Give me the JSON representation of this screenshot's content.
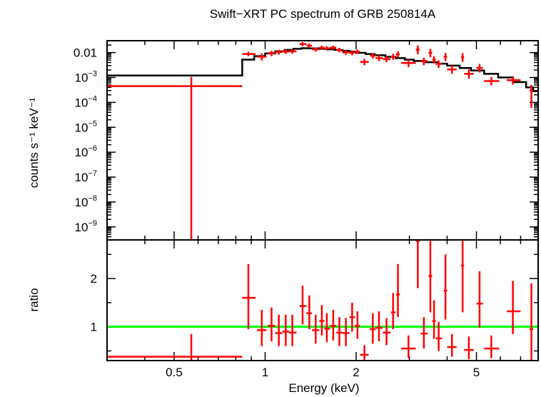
{
  "chart_data": [
    {
      "type": "scatter",
      "title": "Swift−XRT PC spectrum of GRB 250814A",
      "ylabel": "counts s⁻¹ keV⁻¹",
      "xscale": "log",
      "yscale": "log",
      "xlim": [
        0.3,
        8.0
      ],
      "ylim": [
        3e-10,
        0.03
      ],
      "yticks": [
        {
          "value": 0.01,
          "label": "0.01"
        },
        {
          "value": 0.001,
          "base": "10",
          "exp": "−3"
        },
        {
          "value": 0.0001,
          "base": "10",
          "exp": "−4"
        },
        {
          "value": 1e-05,
          "base": "10",
          "exp": "−5"
        },
        {
          "value": 1e-06,
          "base": "10",
          "exp": "−6"
        },
        {
          "value": 1e-07,
          "base": "10",
          "exp": "−7"
        },
        {
          "value": 1e-08,
          "base": "10",
          "exp": "−8"
        },
        {
          "value": 1e-09,
          "base": "10",
          "exp": "−9"
        }
      ],
      "series": [
        {
          "kind": "data",
          "color": "#ff0000",
          "points": [
            {
              "x": 0.57,
              "xlo": 0.3,
              "xhi": 0.84,
              "y": 0.00045,
              "ylo": 3e-10,
              "yhi": 0.00105
            },
            {
              "x": 0.88,
              "xlo": 0.84,
              "xhi": 0.93,
              "y": 0.0088,
              "ylo": 0.0072,
              "yhi": 0.0108
            },
            {
              "x": 0.975,
              "xlo": 0.94,
              "xhi": 1.01,
              "y": 0.0068,
              "ylo": 0.0048,
              "yhi": 0.0092
            },
            {
              "x": 1.05,
              "xlo": 1.02,
              "xhi": 1.08,
              "y": 0.0095,
              "ylo": 0.0072,
              "yhi": 0.0118
            },
            {
              "x": 1.11,
              "xlo": 1.08,
              "xhi": 1.14,
              "y": 0.0105,
              "ylo": 0.0082,
              "yhi": 0.013
            },
            {
              "x": 1.17,
              "xlo": 1.14,
              "xhi": 1.2,
              "y": 0.011,
              "ylo": 0.0088,
              "yhi": 0.0135
            },
            {
              "x": 1.23,
              "xlo": 1.2,
              "xhi": 1.27,
              "y": 0.0112,
              "ylo": 0.009,
              "yhi": 0.0138
            },
            {
              "x": 1.33,
              "xlo": 1.3,
              "xhi": 1.37,
              "y": 0.022,
              "ylo": 0.018,
              "yhi": 0.026
            },
            {
              "x": 1.4,
              "xlo": 1.37,
              "xhi": 1.43,
              "y": 0.019,
              "ylo": 0.0155,
              "yhi": 0.023
            },
            {
              "x": 1.47,
              "xlo": 1.43,
              "xhi": 1.51,
              "y": 0.0135,
              "ylo": 0.011,
              "yhi": 0.016
            },
            {
              "x": 1.54,
              "xlo": 1.51,
              "xhi": 1.57,
              "y": 0.0158,
              "ylo": 0.013,
              "yhi": 0.019
            },
            {
              "x": 1.6,
              "xlo": 1.57,
              "xhi": 1.64,
              "y": 0.0148,
              "ylo": 0.012,
              "yhi": 0.018
            },
            {
              "x": 1.68,
              "xlo": 1.64,
              "xhi": 1.72,
              "y": 0.0158,
              "ylo": 0.013,
              "yhi": 0.019
            },
            {
              "x": 1.76,
              "xlo": 1.72,
              "xhi": 1.8,
              "y": 0.0128,
              "ylo": 0.0102,
              "yhi": 0.0155
            },
            {
              "x": 1.85,
              "xlo": 1.8,
              "xhi": 1.9,
              "y": 0.0102,
              "ylo": 0.0082,
              "yhi": 0.0125
            },
            {
              "x": 1.94,
              "xlo": 1.9,
              "xhi": 1.98,
              "y": 0.0098,
              "ylo": 0.0078,
              "yhi": 0.012
            },
            {
              "x": 2.02,
              "xlo": 1.98,
              "xhi": 2.06,
              "y": 0.0108,
              "ylo": 0.0088,
              "yhi": 0.0132
            },
            {
              "x": 2.13,
              "xlo": 2.06,
              "xhi": 2.2,
              "y": 0.0042,
              "ylo": 0.0031,
              "yhi": 0.0056
            },
            {
              "x": 2.27,
              "xlo": 2.22,
              "xhi": 2.32,
              "y": 0.0075,
              "ylo": 0.0058,
              "yhi": 0.0095
            },
            {
              "x": 2.38,
              "xlo": 2.32,
              "xhi": 2.45,
              "y": 0.006,
              "ylo": 0.0045,
              "yhi": 0.0078
            },
            {
              "x": 2.52,
              "xlo": 2.45,
              "xhi": 2.6,
              "y": 0.0055,
              "ylo": 0.0041,
              "yhi": 0.0072
            },
            {
              "x": 2.65,
              "xlo": 2.61,
              "xhi": 2.7,
              "y": 0.0068,
              "ylo": 0.0051,
              "yhi": 0.0089
            },
            {
              "x": 2.75,
              "xlo": 2.71,
              "xhi": 2.79,
              "y": 0.0085,
              "ylo": 0.0062,
              "yhi": 0.0112
            },
            {
              "x": 2.98,
              "xlo": 2.82,
              "xhi": 3.15,
              "y": 0.0038,
              "ylo": 0.0026,
              "yhi": 0.0054
            },
            {
              "x": 3.2,
              "xlo": 3.15,
              "xhi": 3.25,
              "y": 0.0132,
              "ylo": 0.0085,
              "yhi": 0.0195
            },
            {
              "x": 3.35,
              "xlo": 3.27,
              "xhi": 3.45,
              "y": 0.0045,
              "ylo": 0.0031,
              "yhi": 0.0063
            },
            {
              "x": 3.52,
              "xlo": 3.47,
              "xhi": 3.57,
              "y": 0.0098,
              "ylo": 0.0065,
              "yhi": 0.0142
            },
            {
              "x": 3.62,
              "xlo": 3.57,
              "xhi": 3.67,
              "y": 0.0052,
              "ylo": 0.0036,
              "yhi": 0.0072
            },
            {
              "x": 3.75,
              "xlo": 3.67,
              "xhi": 3.85,
              "y": 0.0035,
              "ylo": 0.0024,
              "yhi": 0.0049
            },
            {
              "x": 3.95,
              "xlo": 3.9,
              "xhi": 4.0,
              "y": 0.0068,
              "ylo": 0.0045,
              "yhi": 0.0098
            },
            {
              "x": 4.15,
              "xlo": 4.0,
              "xhi": 4.3,
              "y": 0.0021,
              "ylo": 0.0014,
              "yhi": 0.003
            },
            {
              "x": 4.5,
              "xlo": 4.45,
              "xhi": 4.55,
              "y": 0.0065,
              "ylo": 0.0042,
              "yhi": 0.0095
            },
            {
              "x": 4.72,
              "xlo": 4.55,
              "xhi": 4.9,
              "y": 0.0014,
              "ylo": 0.0009,
              "yhi": 0.0021
            },
            {
              "x": 5.12,
              "xlo": 5.0,
              "xhi": 5.25,
              "y": 0.0024,
              "ylo": 0.0016,
              "yhi": 0.0035
            },
            {
              "x": 5.6,
              "xlo": 5.3,
              "xhi": 5.95,
              "y": 0.00072,
              "ylo": 0.00048,
              "yhi": 0.00105
            },
            {
              "x": 6.6,
              "xlo": 6.3,
              "xhi": 7.0,
              "y": 0.00078,
              "ylo": 0.00052,
              "yhi": 0.00112
            },
            {
              "x": 7.6,
              "xlo": 7.5,
              "xhi": 7.7,
              "y": 0.0003,
              "ylo": 6e-05,
              "yhi": 0.0005
            }
          ]
        },
        {
          "kind": "model",
          "color": "#000000",
          "steps": [
            {
              "xlo": 0.3,
              "xhi": 0.84,
              "y": 0.0012
            },
            {
              "xlo": 0.84,
              "xhi": 0.92,
              "y": 0.0052
            },
            {
              "xlo": 0.92,
              "xhi": 1.0,
              "y": 0.0072
            },
            {
              "xlo": 1.0,
              "xhi": 1.08,
              "y": 0.0092
            },
            {
              "xlo": 1.08,
              "xhi": 1.16,
              "y": 0.0112
            },
            {
              "xlo": 1.16,
              "xhi": 1.24,
              "y": 0.0128
            },
            {
              "xlo": 1.24,
              "xhi": 1.32,
              "y": 0.0142
            },
            {
              "xlo": 1.32,
              "xhi": 1.4,
              "y": 0.015
            },
            {
              "xlo": 1.4,
              "xhi": 1.5,
              "y": 0.0148
            },
            {
              "xlo": 1.5,
              "xhi": 1.6,
              "y": 0.0142
            },
            {
              "xlo": 1.6,
              "xhi": 1.7,
              "y": 0.0135
            },
            {
              "xlo": 1.7,
              "xhi": 1.8,
              "y": 0.0128
            },
            {
              "xlo": 1.8,
              "xhi": 1.9,
              "y": 0.0118
            },
            {
              "xlo": 1.9,
              "xhi": 2.0,
              "y": 0.011
            },
            {
              "xlo": 2.0,
              "xhi": 2.15,
              "y": 0.0098
            },
            {
              "xlo": 2.15,
              "xhi": 2.3,
              "y": 0.0088
            },
            {
              "xlo": 2.3,
              "xhi": 2.5,
              "y": 0.0078
            },
            {
              "xlo": 2.5,
              "xhi": 2.7,
              "y": 0.0068
            },
            {
              "xlo": 2.7,
              "xhi": 2.9,
              "y": 0.006
            },
            {
              "xlo": 2.9,
              "xhi": 3.1,
              "y": 0.0052
            },
            {
              "xlo": 3.1,
              "xhi": 3.4,
              "y": 0.0046
            },
            {
              "xlo": 3.4,
              "xhi": 3.7,
              "y": 0.0041
            },
            {
              "xlo": 3.7,
              "xhi": 4.0,
              "y": 0.0036
            },
            {
              "xlo": 4.0,
              "xhi": 4.4,
              "y": 0.003
            },
            {
              "xlo": 4.4,
              "xhi": 4.8,
              "y": 0.0024
            },
            {
              "xlo": 4.8,
              "xhi": 5.3,
              "y": 0.0019
            },
            {
              "xlo": 5.3,
              "xhi": 5.9,
              "y": 0.0014
            },
            {
              "xlo": 5.9,
              "xhi": 6.6,
              "y": 0.001
            },
            {
              "xlo": 6.6,
              "xhi": 7.3,
              "y": 0.00065
            },
            {
              "xlo": 7.3,
              "xhi": 7.7,
              "y": 0.0004
            },
            {
              "xlo": 7.7,
              "xhi": 8.0,
              "y": 0.00028
            }
          ]
        }
      ]
    },
    {
      "type": "scatter",
      "xlabel": "Energy (keV)",
      "ylabel": "ratio",
      "xscale": "log",
      "xlim": [
        0.3,
        8.0
      ],
      "ylim": [
        0.3,
        2.8
      ],
      "xticks": [
        {
          "value": 0.5,
          "label": "0.5"
        },
        {
          "value": 1,
          "label": "1"
        },
        {
          "value": 2,
          "label": "2"
        },
        {
          "value": 5,
          "label": "5"
        }
      ],
      "yticks": [
        {
          "value": 1,
          "label": "1"
        },
        {
          "value": 2,
          "label": "2"
        }
      ],
      "reference_line": {
        "y": 1,
        "color": "#00ff00"
      },
      "series": [
        {
          "kind": "data",
          "color": "#ff0000",
          "points": [
            {
              "x": 0.57,
              "xlo": 0.3,
              "xhi": 0.84,
              "y": 0.38,
              "ylo": 0.3,
              "yhi": 0.85
            },
            {
              "x": 0.88,
              "xlo": 0.84,
              "xhi": 0.93,
              "y": 1.6,
              "ylo": 0.95,
              "yhi": 2.3
            },
            {
              "x": 0.975,
              "xlo": 0.94,
              "xhi": 1.01,
              "y": 0.93,
              "ylo": 0.6,
              "yhi": 1.35
            },
            {
              "x": 1.05,
              "xlo": 1.02,
              "xhi": 1.08,
              "y": 1.02,
              "ylo": 0.7,
              "yhi": 1.4
            },
            {
              "x": 1.11,
              "xlo": 1.08,
              "xhi": 1.14,
              "y": 0.87,
              "ylo": 0.6,
              "yhi": 1.25
            },
            {
              "x": 1.17,
              "xlo": 1.14,
              "xhi": 1.2,
              "y": 0.9,
              "ylo": 0.6,
              "yhi": 1.25
            },
            {
              "x": 1.23,
              "xlo": 1.2,
              "xhi": 1.27,
              "y": 0.88,
              "ylo": 0.6,
              "yhi": 1.25
            },
            {
              "x": 1.33,
              "xlo": 1.3,
              "xhi": 1.37,
              "y": 1.43,
              "ylo": 1.05,
              "yhi": 1.85
            },
            {
              "x": 1.4,
              "xlo": 1.37,
              "xhi": 1.43,
              "y": 1.28,
              "ylo": 0.95,
              "yhi": 1.65
            },
            {
              "x": 1.47,
              "xlo": 1.43,
              "xhi": 1.51,
              "y": 0.93,
              "ylo": 0.65,
              "yhi": 1.25
            },
            {
              "x": 1.54,
              "xlo": 1.51,
              "xhi": 1.57,
              "y": 1.12,
              "ylo": 0.82,
              "yhi": 1.45
            },
            {
              "x": 1.6,
              "xlo": 1.57,
              "xhi": 1.64,
              "y": 0.96,
              "ylo": 0.68,
              "yhi": 1.28
            },
            {
              "x": 1.68,
              "xlo": 1.64,
              "xhi": 1.72,
              "y": 1.02,
              "ylo": 0.72,
              "yhi": 1.35
            },
            {
              "x": 1.76,
              "xlo": 1.72,
              "xhi": 1.8,
              "y": 0.88,
              "ylo": 0.6,
              "yhi": 1.2
            },
            {
              "x": 1.85,
              "xlo": 1.8,
              "xhi": 1.9,
              "y": 0.87,
              "ylo": 0.6,
              "yhi": 1.18
            },
            {
              "x": 1.94,
              "xlo": 1.9,
              "xhi": 1.98,
              "y": 1.2,
              "ylo": 0.9,
              "yhi": 1.5
            },
            {
              "x": 2.02,
              "xlo": 1.98,
              "xhi": 2.06,
              "y": 1.02,
              "ylo": 0.75,
              "yhi": 1.32
            },
            {
              "x": 2.13,
              "xlo": 2.06,
              "xhi": 2.2,
              "y": 0.42,
              "ylo": 0.3,
              "yhi": 0.62
            },
            {
              "x": 2.27,
              "xlo": 2.22,
              "xhi": 2.32,
              "y": 0.95,
              "ylo": 0.65,
              "yhi": 1.28
            },
            {
              "x": 2.38,
              "xlo": 2.32,
              "xhi": 2.45,
              "y": 0.98,
              "ylo": 0.7,
              "yhi": 1.32
            },
            {
              "x": 2.52,
              "xlo": 2.45,
              "xhi": 2.6,
              "y": 0.88,
              "ylo": 0.62,
              "yhi": 1.18
            },
            {
              "x": 2.65,
              "xlo": 2.61,
              "xhi": 2.7,
              "y": 1.3,
              "ylo": 0.95,
              "yhi": 1.7
            },
            {
              "x": 2.75,
              "xlo": 2.71,
              "xhi": 2.79,
              "y": 1.67,
              "ylo": 1.2,
              "yhi": 2.3
            },
            {
              "x": 2.98,
              "xlo": 2.82,
              "xhi": 3.15,
              "y": 0.55,
              "ylo": 0.35,
              "yhi": 0.82
            },
            {
              "x": 3.2,
              "xlo": 3.15,
              "xhi": 3.25,
              "y": 2.78,
              "ylo": 1.8,
              "yhi": 2.8
            },
            {
              "x": 3.35,
              "xlo": 3.27,
              "xhi": 3.45,
              "y": 0.86,
              "ylo": 0.55,
              "yhi": 1.2
            },
            {
              "x": 3.52,
              "xlo": 3.47,
              "xhi": 3.57,
              "y": 2.05,
              "ylo": 1.3,
              "yhi": 2.8
            },
            {
              "x": 3.62,
              "xlo": 3.57,
              "xhi": 3.67,
              "y": 1.12,
              "ylo": 0.75,
              "yhi": 1.55
            },
            {
              "x": 3.75,
              "xlo": 3.67,
              "xhi": 3.85,
              "y": 0.76,
              "ylo": 0.5,
              "yhi": 1.1
            },
            {
              "x": 3.95,
              "xlo": 3.9,
              "xhi": 4.0,
              "y": 1.75,
              "ylo": 1.15,
              "yhi": 2.5
            },
            {
              "x": 4.15,
              "xlo": 4.0,
              "xhi": 4.3,
              "y": 0.58,
              "ylo": 0.38,
              "yhi": 0.85
            },
            {
              "x": 4.5,
              "xlo": 4.45,
              "xhi": 4.55,
              "y": 2.27,
              "ylo": 1.3,
              "yhi": 2.8
            },
            {
              "x": 4.72,
              "xlo": 4.55,
              "xhi": 4.9,
              "y": 0.52,
              "ylo": 0.33,
              "yhi": 0.8
            },
            {
              "x": 5.12,
              "xlo": 5.0,
              "xhi": 5.25,
              "y": 1.48,
              "ylo": 0.98,
              "yhi": 2.15
            },
            {
              "x": 5.6,
              "xlo": 5.3,
              "xhi": 5.95,
              "y": 0.55,
              "ylo": 0.35,
              "yhi": 0.82
            },
            {
              "x": 6.6,
              "xlo": 6.3,
              "xhi": 7.0,
              "y": 1.32,
              "ylo": 0.85,
              "yhi": 1.95
            },
            {
              "x": 7.6,
              "xlo": 7.5,
              "xhi": 7.7,
              "y": 0.95,
              "ylo": 0.3,
              "yhi": 1.9
            }
          ]
        }
      ]
    }
  ]
}
